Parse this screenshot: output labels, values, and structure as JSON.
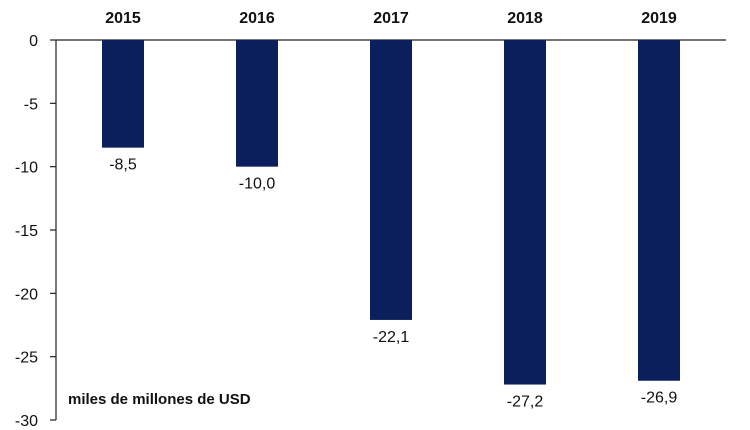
{
  "chart_data": {
    "type": "bar",
    "categories": [
      "2015",
      "2016",
      "2017",
      "2018",
      "2019"
    ],
    "values": [
      -8.5,
      -10.0,
      -22.1,
      -27.2,
      -26.9
    ],
    "value_labels": [
      "-8,5",
      "-10,0",
      "-22,1",
      "-27,2",
      "-26,9"
    ],
    "ylim": [
      -30,
      0
    ],
    "yticks": [
      0,
      -5,
      -10,
      -15,
      -20,
      -25,
      -30
    ],
    "ytick_labels": [
      "0",
      "-5",
      "-10",
      "-15",
      "-20",
      "-25",
      "-30"
    ],
    "unit_note": "miles de millones de USD",
    "category_axis_position": "top",
    "grid": false,
    "bar_color": "#0b1f5c",
    "axis_color": "#222222"
  }
}
